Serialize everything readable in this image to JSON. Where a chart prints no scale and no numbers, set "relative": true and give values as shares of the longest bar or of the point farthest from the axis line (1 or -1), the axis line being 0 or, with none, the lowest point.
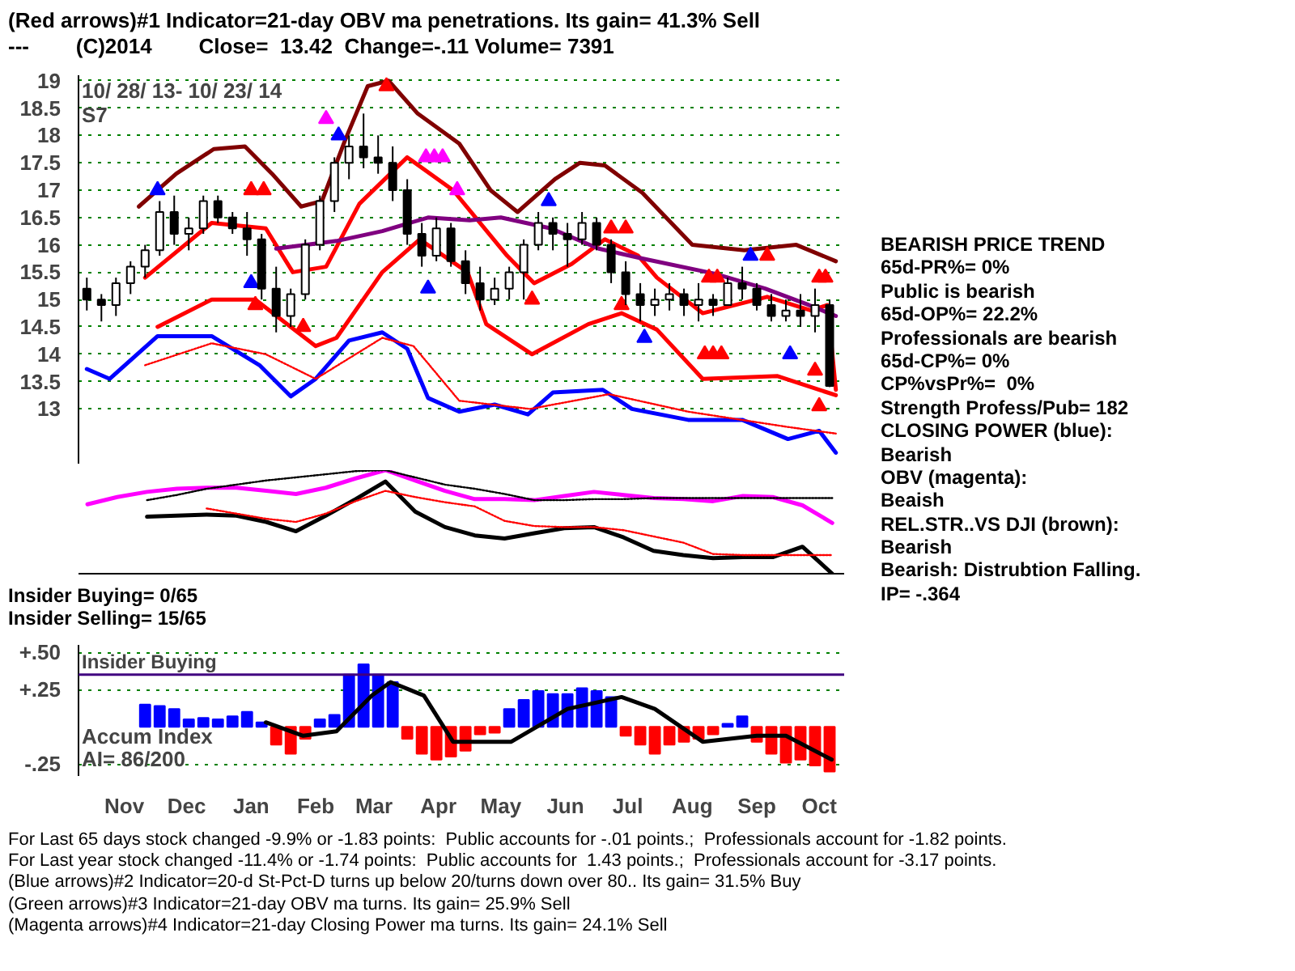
{
  "chart_data": [
    {
      "type": "candlestick",
      "title": "(Red arrows)#1 Indicator=21-day OBV ma penetrations. Its gain= 41.3% Sell",
      "subtitle": "---        (C)2014        Close=  13.42  Change=-.11 Volume= 7391",
      "color": "#000000",
      "x": [
        "2013-10-28",
        "2013-11-04",
        "2013-11-11",
        "2013-11-18",
        "2013-11-25",
        "2013-12-02",
        "2013-12-09",
        "2013-12-16",
        "2013-12-23",
        "2013-12-30",
        "2014-01-06",
        "2014-01-13",
        "2014-01-20",
        "2014-01-27",
        "2014-02-03",
        "2014-02-10",
        "2014-02-17",
        "2014-02-24",
        "2014-03-03",
        "2014-03-10",
        "2014-03-17",
        "2014-03-24",
        "2014-03-31",
        "2014-04-07",
        "2014-04-14",
        "2014-04-21",
        "2014-04-28",
        "2014-05-05",
        "2014-05-12",
        "2014-05-19",
        "2014-05-26",
        "2014-06-02",
        "2014-06-09",
        "2014-06-16",
        "2014-06-23",
        "2014-06-30",
        "2014-07-07",
        "2014-07-14",
        "2014-07-21",
        "2014-07-28",
        "2014-08-04",
        "2014-08-11",
        "2014-08-18",
        "2014-08-25",
        "2014-09-01",
        "2014-09-08",
        "2014-09-15",
        "2014-09-22",
        "2014-09-29",
        "2014-10-06",
        "2014-10-13",
        "2014-10-20"
      ],
      "ohlc": [
        [
          15.2,
          15.4,
          14.8,
          15.0
        ],
        [
          15.0,
          15.1,
          14.6,
          14.9
        ],
        [
          14.9,
          15.4,
          14.7,
          15.3
        ],
        [
          15.3,
          15.7,
          15.1,
          15.6
        ],
        [
          15.6,
          16.0,
          15.4,
          15.9
        ],
        [
          15.9,
          16.8,
          15.8,
          16.6
        ],
        [
          16.6,
          16.9,
          16.0,
          16.2
        ],
        [
          16.2,
          16.5,
          15.9,
          16.3
        ],
        [
          16.3,
          16.9,
          16.2,
          16.8
        ],
        [
          16.8,
          16.9,
          16.4,
          16.5
        ],
        [
          16.5,
          16.6,
          16.2,
          16.3
        ],
        [
          16.3,
          16.6,
          15.8,
          16.1
        ],
        [
          16.1,
          16.2,
          15.0,
          15.2
        ],
        [
          15.2,
          15.6,
          14.4,
          14.7
        ],
        [
          14.7,
          15.2,
          14.5,
          15.1
        ],
        [
          15.1,
          16.1,
          15.0,
          16.0
        ],
        [
          16.0,
          16.9,
          15.9,
          16.8
        ],
        [
          16.8,
          17.6,
          16.6,
          17.5
        ],
        [
          17.5,
          18.0,
          17.2,
          17.8
        ],
        [
          17.8,
          18.4,
          17.4,
          17.6
        ],
        [
          17.6,
          18.0,
          17.3,
          17.5
        ],
        [
          17.5,
          17.8,
          16.8,
          17.0
        ],
        [
          17.0,
          17.2,
          16.0,
          16.2
        ],
        [
          16.2,
          16.4,
          15.6,
          15.8
        ],
        [
          15.8,
          16.5,
          15.7,
          16.3
        ],
        [
          16.3,
          16.4,
          15.6,
          15.7
        ],
        [
          15.7,
          15.9,
          15.1,
          15.3
        ],
        [
          15.3,
          15.6,
          14.8,
          15.0
        ],
        [
          15.0,
          15.4,
          14.9,
          15.2
        ],
        [
          15.2,
          15.6,
          15.0,
          15.5
        ],
        [
          15.5,
          16.1,
          15.0,
          16.0
        ],
        [
          16.0,
          16.6,
          15.9,
          16.4
        ],
        [
          16.4,
          16.5,
          15.9,
          16.2
        ],
        [
          16.2,
          16.4,
          15.6,
          16.1
        ],
        [
          16.1,
          16.6,
          16.0,
          16.4
        ],
        [
          16.4,
          16.5,
          15.9,
          16.0
        ],
        [
          16.0,
          16.1,
          15.3,
          15.5
        ],
        [
          15.5,
          15.7,
          14.9,
          15.1
        ],
        [
          15.1,
          15.3,
          14.6,
          14.9
        ],
        [
          14.9,
          15.2,
          14.7,
          15.0
        ],
        [
          15.0,
          15.3,
          14.8,
          15.1
        ],
        [
          15.1,
          15.2,
          14.7,
          14.9
        ],
        [
          14.9,
          15.3,
          14.6,
          15.0
        ],
        [
          15.0,
          15.1,
          14.7,
          14.9
        ],
        [
          14.9,
          15.4,
          14.9,
          15.3
        ],
        [
          15.3,
          15.6,
          15.0,
          15.2
        ],
        [
          15.2,
          15.3,
          14.8,
          14.9
        ],
        [
          14.9,
          15.1,
          14.6,
          14.7
        ],
        [
          14.7,
          15.0,
          14.6,
          14.8
        ],
        [
          14.8,
          15.1,
          14.5,
          14.7
        ],
        [
          14.7,
          15.2,
          14.4,
          14.9
        ],
        [
          14.9,
          15.0,
          13.4,
          13.42
        ]
      ],
      "xlim": [
        "2013-10-24",
        "2014-10-27"
      ],
      "ylim": [
        12.0,
        19.1
      ],
      "yticks": [
        13,
        13.5,
        14,
        14.5,
        15,
        15.5,
        16,
        16.5,
        17,
        17.5,
        18,
        18.5,
        19
      ],
      "grid": "y",
      "tick_labels": "y",
      "series": [
        {
          "type": "line",
          "color": "#800000",
          "x": [
            "2013-11-22",
            "2013-12-10",
            "2013-12-28",
            "2014-01-12",
            "2014-01-25",
            "2014-02-08",
            "2014-02-18",
            "2014-03-01",
            "2014-03-12",
            "2014-03-22",
            "2014-04-05",
            "2014-04-25",
            "2014-05-10",
            "2014-05-23",
            "2014-06-10",
            "2014-06-22",
            "2014-07-04",
            "2014-07-22",
            "2014-08-15",
            "2014-09-09",
            "2014-10-04",
            "2014-10-23"
          ],
          "values": [
            16.7,
            17.3,
            17.75,
            17.8,
            17.3,
            16.7,
            16.8,
            17.9,
            18.9,
            19.0,
            18.4,
            17.85,
            17.0,
            16.6,
            17.2,
            17.5,
            17.45,
            16.95,
            16.0,
            15.9,
            16.0,
            15.7
          ]
        },
        {
          "type": "line",
          "color": "#ff0000",
          "x": [
            "2013-11-25",
            "2013-12-27",
            "2014-01-22",
            "2014-02-04",
            "2014-02-20",
            "2014-03-08",
            "2014-03-31",
            "2014-04-22",
            "2014-05-18",
            "2014-05-31",
            "2014-06-18",
            "2014-07-04",
            "2014-07-20",
            "2014-07-29",
            "2014-08-20",
            "2014-09-20",
            "2014-10-11",
            "2014-10-19",
            "2014-10-23"
          ],
          "values": [
            15.4,
            16.4,
            16.3,
            15.5,
            15.6,
            16.75,
            17.6,
            17.0,
            15.8,
            15.3,
            15.65,
            16.1,
            15.8,
            15.4,
            14.75,
            15.05,
            14.8,
            14.9,
            13.35
          ]
        },
        {
          "type": "line",
          "color": "#ff0000",
          "x": [
            "2013-12-01",
            "2013-12-27",
            "2014-01-17",
            "2014-02-03",
            "2014-02-15",
            "2014-02-25",
            "2014-03-19",
            "2014-04-06",
            "2014-04-29",
            "2014-05-08",
            "2014-05-30",
            "2014-06-26",
            "2014-07-12",
            "2014-07-29",
            "2014-08-20",
            "2014-09-25",
            "2014-10-23"
          ],
          "values": [
            14.5,
            15.0,
            15.0,
            14.5,
            14.15,
            14.3,
            15.5,
            16.1,
            15.5,
            14.55,
            14.0,
            14.55,
            14.75,
            14.45,
            13.55,
            13.6,
            13.25
          ]
        },
        {
          "type": "line",
          "color": "#800080",
          "x": [
            "2014-01-27",
            "2014-02-25",
            "2014-03-19",
            "2014-04-10",
            "2014-04-30",
            "2014-05-15",
            "2014-06-08",
            "2014-07-01",
            "2014-07-22",
            "2014-08-26",
            "2014-09-19",
            "2014-10-10",
            "2014-10-23"
          ],
          "values": [
            15.93,
            16.07,
            16.25,
            16.5,
            16.45,
            16.5,
            16.3,
            15.93,
            15.75,
            15.47,
            15.2,
            14.9,
            14.7
          ]
        },
        {
          "type": "line",
          "color": "#0000ff",
          "x": [
            "2013-10-28",
            "2013-11-08",
            "2013-12-01",
            "2013-12-27",
            "2014-01-19",
            "2014-02-03",
            "2014-02-15",
            "2014-03-03",
            "2014-03-19",
            "2014-03-31",
            "2014-04-10",
            "2014-04-25",
            "2014-05-12",
            "2014-05-28",
            "2014-06-09",
            "2014-07-03",
            "2014-07-17",
            "2014-08-13",
            "2014-09-08",
            "2014-09-30",
            "2014-10-15",
            "2014-10-23"
          ],
          "values": [
            13.73,
            13.55,
            14.33,
            14.33,
            13.8,
            13.23,
            13.55,
            14.25,
            14.4,
            14.1,
            13.2,
            12.95,
            13.08,
            12.9,
            13.3,
            13.35,
            13.0,
            12.8,
            12.8,
            12.45,
            12.6,
            12.2
          ]
        },
        {
          "type": "line",
          "color": "#ff0000",
          "line_style": "dotted",
          "x": [
            "2013-11-25",
            "2013-12-27",
            "2014-01-22",
            "2014-02-15",
            "2014-03-19",
            "2014-04-03",
            "2014-04-25",
            "2014-05-29",
            "2014-07-06",
            "2014-08-13",
            "2014-09-30",
            "2014-10-23"
          ],
          "values": [
            13.8,
            14.2,
            14.0,
            13.55,
            14.3,
            14.15,
            13.15,
            13.0,
            13.27,
            12.95,
            12.67,
            12.55
          ]
        },
        {
          "type": "scatter",
          "color": "#ff0000",
          "marker": "triangle",
          "x": [
            "2014-01-15",
            "2014-01-21",
            "2014-03-21",
            "2014-07-07",
            "2014-07-14",
            "2014-08-23",
            "2014-08-27",
            "2014-09-20",
            "2014-10-15",
            "2014-10-18"
          ],
          "values": [
            17.0,
            17.0,
            18.9,
            16.3,
            16.3,
            15.4,
            15.4,
            15.8,
            15.4,
            15.4
          ]
        },
        {
          "type": "scatter",
          "color": "#ff0000",
          "marker": "triangle",
          "x": [
            "2014-01-17",
            "2014-02-09",
            "2014-05-30",
            "2014-07-12",
            "2014-08-21",
            "2014-08-25",
            "2014-08-29",
            "2014-10-13",
            "2014-10-15"
          ],
          "values": [
            14.9,
            14.5,
            15.0,
            14.9,
            14.0,
            14.0,
            14.0,
            13.7,
            13.05
          ]
        },
        {
          "type": "scatter",
          "color": "#0000ff",
          "marker": "triangle",
          "x": [
            "2013-12-01",
            "2014-02-26",
            "2014-06-07",
            "2014-09-12"
          ],
          "values": [
            17.0,
            18.0,
            16.8,
            15.8
          ]
        },
        {
          "type": "scatter",
          "color": "#0000ff",
          "marker": "triangle",
          "x": [
            "2014-01-15",
            "2014-04-10",
            "2014-07-23",
            "2014-10-01"
          ],
          "values": [
            15.3,
            15.2,
            14.3,
            14.0
          ]
        },
        {
          "type": "scatter",
          "color": "#ff00ff",
          "marker": "triangle",
          "x": [
            "2014-02-20",
            "2014-04-09",
            "2014-04-13",
            "2014-04-17",
            "2014-04-24"
          ],
          "values": [
            18.3,
            17.6,
            17.6,
            17.6,
            17.0
          ]
        }
      ],
      "annotations": [
        "10/ 28/ 13- 10/ 23/ 14",
        "S7"
      ]
    },
    {
      "type": "line",
      "relative": true,
      "tick_labels": false,
      "categories": [
        null,
        null,
        null,
        null,
        null,
        null,
        null,
        null,
        null,
        null,
        null,
        null,
        null,
        null,
        null,
        null,
        null,
        null,
        null,
        null,
        null,
        null,
        null,
        null,
        null,
        null
      ],
      "series": [
        {
          "color": "#ff00ff",
          "values": [
            0.67,
            0.74,
            0.79,
            0.82,
            0.83,
            0.83,
            0.8,
            0.77,
            0.83,
            0.92,
            1.0,
            0.9,
            0.8,
            0.72,
            0.72,
            0.71,
            0.75,
            0.79,
            0.76,
            0.73,
            0.72,
            0.7,
            0.75,
            0.74,
            0.66,
            0.49
          ]
        },
        {
          "color": "#000000",
          "values": [
            null,
            null,
            0.55,
            0.56,
            0.57,
            0.56,
            0.5,
            0.41,
            0.56,
            0.72,
            0.89,
            0.6,
            0.45,
            0.37,
            0.34,
            0.39,
            0.44,
            0.45,
            0.35,
            0.22,
            0.18,
            0.15,
            0.16,
            0.16,
            0.26,
            0
          ]
        },
        {
          "color": "#000000",
          "line_style": "dotted",
          "values": [
            null,
            null,
            0.71,
            0.76,
            0.82,
            0.86,
            0.9,
            0.93,
            0.96,
            0.99,
            1.0,
            0.93,
            0.86,
            0.82,
            0.77,
            0.71,
            0.71,
            0.72,
            0.72,
            0.73,
            0.73,
            0.73,
            0.73,
            0.73,
            0.73,
            0.73
          ]
        },
        {
          "color": "#ff0000",
          "line_style": "dotted",
          "values": [
            null,
            null,
            null,
            null,
            0.63,
            0.58,
            0.53,
            0.5,
            0.58,
            0.7,
            0.8,
            0.74,
            0.69,
            0.65,
            0.51,
            0.46,
            0.45,
            0.45,
            0.42,
            0.36,
            0.3,
            0.19,
            0.18,
            0.18,
            0.18,
            0.18
          ]
        }
      ],
      "annotations": [
        "Insider Buying= 0/65",
        "Insider Selling= 15/65"
      ]
    },
    {
      "type": "bar",
      "xlim": [
        "2013-10-24",
        "2014-10-27"
      ],
      "ylim": [
        -0.33,
        0.55
      ],
      "yticks": [
        {
          "value": 0.5,
          "label": "+.50"
        },
        {
          "value": 0.25,
          "label": "+.25"
        },
        {
          "value": -0.25,
          "label": "-.25"
        }
      ],
      "xticks": [
        {
          "value": "2013-11-15",
          "label": "Nov"
        },
        {
          "value": "2013-12-15",
          "label": "Dec"
        },
        {
          "value": "2014-01-15",
          "label": "Jan"
        },
        {
          "value": "2014-02-15",
          "label": "Feb"
        },
        {
          "value": "2014-03-15",
          "label": "Mar"
        },
        {
          "value": "2014-04-15",
          "label": "Apr"
        },
        {
          "value": "2014-05-15",
          "label": "May"
        },
        {
          "value": "2014-06-15",
          "label": "Jun"
        },
        {
          "value": "2014-07-15",
          "label": "Jul"
        },
        {
          "value": "2014-08-15",
          "label": "Aug"
        },
        {
          "value": "2014-09-15",
          "label": "Sep"
        },
        {
          "value": "2014-10-15",
          "label": "Oct"
        }
      ],
      "grid": "y",
      "x": [
        "2013-11-25",
        "2013-12-02",
        "2013-12-09",
        "2013-12-16",
        "2013-12-23",
        "2013-12-30",
        "2014-01-06",
        "2014-01-13",
        "2014-01-20",
        "2014-01-27",
        "2014-02-03",
        "2014-02-10",
        "2014-02-17",
        "2014-02-24",
        "2014-03-03",
        "2014-03-10",
        "2014-03-17",
        "2014-03-24",
        "2014-03-31",
        "2014-04-07",
        "2014-04-14",
        "2014-04-21",
        "2014-04-28",
        "2014-05-05",
        "2014-05-12",
        "2014-05-19",
        "2014-05-26",
        "2014-06-02",
        "2014-06-09",
        "2014-06-16",
        "2014-06-23",
        "2014-06-30",
        "2014-07-07",
        "2014-07-14",
        "2014-07-21",
        "2014-07-28",
        "2014-08-04",
        "2014-08-11",
        "2014-08-18",
        "2014-08-25",
        "2014-09-01",
        "2014-09-08",
        "2014-09-15",
        "2014-09-22",
        "2014-09-29",
        "2014-10-06",
        "2014-10-13",
        "2014-10-20"
      ],
      "values": [
        0.15,
        0.14,
        0.12,
        0.05,
        0.06,
        0.05,
        0.07,
        0.1,
        0.03,
        -0.12,
        -0.18,
        -0.08,
        0.05,
        0.08,
        0.35,
        0.42,
        0.35,
        0.3,
        -0.08,
        -0.18,
        -0.22,
        -0.2,
        -0.16,
        -0.05,
        -0.04,
        0.12,
        0.18,
        0.24,
        0.22,
        0.22,
        0.26,
        0.24,
        0.2,
        -0.06,
        -0.12,
        -0.18,
        -0.12,
        -0.1,
        -0.08,
        -0.05,
        0.02,
        0.07,
        -0.1,
        -0.18,
        -0.24,
        -0.22,
        -0.26,
        -0.3
      ],
      "colors": [
        "#0000ff",
        "#0000ff",
        "#0000ff",
        "#0000ff",
        "#0000ff",
        "#0000ff",
        "#0000ff",
        "#0000ff",
        "#0000ff",
        "#ff0000",
        "#ff0000",
        "#ff0000",
        "#0000ff",
        "#0000ff",
        "#0000ff",
        "#0000ff",
        "#0000ff",
        "#0000ff",
        "#ff0000",
        "#ff0000",
        "#ff0000",
        "#ff0000",
        "#ff0000",
        "#ff0000",
        "#ff0000",
        "#0000ff",
        "#0000ff",
        "#0000ff",
        "#0000ff",
        "#0000ff",
        "#0000ff",
        "#0000ff",
        "#0000ff",
        "#ff0000",
        "#ff0000",
        "#ff0000",
        "#ff0000",
        "#ff0000",
        "#ff0000",
        "#ff0000",
        "#0000ff",
        "#0000ff",
        "#ff0000",
        "#ff0000",
        "#ff0000",
        "#ff0000",
        "#ff0000",
        "#ff0000"
      ],
      "series": [
        {
          "type": "line",
          "color": "#000000",
          "x": [
            "2014-01-22",
            "2014-02-09",
            "2014-02-25",
            "2014-03-14",
            "2014-03-23",
            "2014-04-08",
            "2014-04-22",
            "2014-05-20",
            "2014-06-16",
            "2014-07-12",
            "2014-07-28",
            "2014-08-20",
            "2014-09-15",
            "2014-09-29",
            "2014-10-21"
          ],
          "values": [
            0.03,
            -0.06,
            -0.03,
            0.21,
            0.3,
            0.21,
            -0.1,
            -0.1,
            0.12,
            0.2,
            0.12,
            -0.1,
            -0.06,
            -0.06,
            -0.22
          ]
        }
      ],
      "ref_lines": [
        {
          "axis": "y",
          "value": 0.35,
          "label": "Insider Buying",
          "color": "#400080"
        }
      ],
      "annotations": [
        "Accum Index",
        "AI= 86/200"
      ]
    },
    {
      "type": "other",
      "annotations": [
        "BEARISH PRICE TREND",
        "65d-PR%= 0%",
        "Public is bearish",
        "65d-OP%= 22.2%",
        "Professionals are bearish",
        "65d-CP%= 0%",
        "CP%vsPr%=  0%",
        "Strength Profess/Pub= 182",
        "CLOSING POWER (blue):",
        "Bearish",
        "OBV (magenta):",
        "Beaish",
        "REL.STR..VS DJI (brown):",
        "Bearish",
        "Bearish: Distrubtion Falling.",
        "IP= -.364"
      ]
    },
    {
      "type": "other",
      "annotations": [
        "For Last 65 days stock changed -9.9% or -1.83 points:  Public accounts for -.01 points.;  Professionals account for -1.82 points.",
        "For Last year stock changed -11.4% or -1.74 points:  Public accounts for  1.43 points.;  Professionals account for -3.17 points.",
        "(Blue arrows)#2 Indicator=20-d St-Pct-D turns up below 20/turns down over 80.. Its gain= 31.5% Buy",
        "(Green arrows)#3 Indicator=21-day OBV ma turns. Its gain= 25.9% Sell",
        "(Magenta arrows)#4 Indicator=21-day Closing Power ma turns. Its gain= 24.1% Sell"
      ]
    }
  ]
}
